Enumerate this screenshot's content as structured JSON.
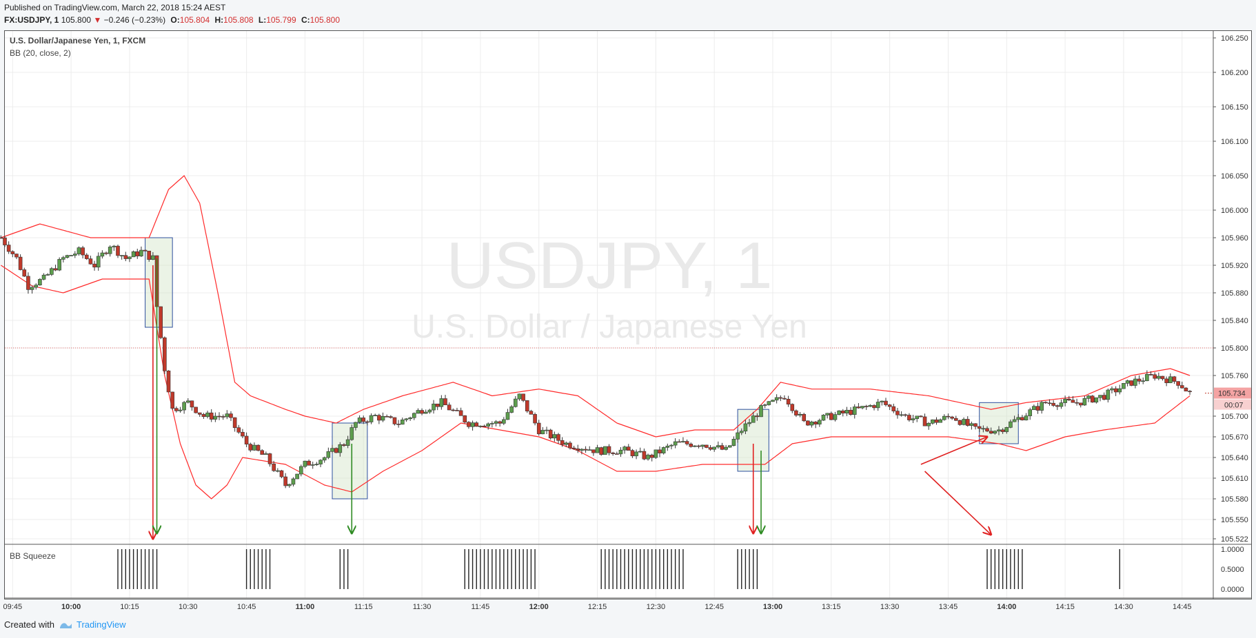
{
  "header": {
    "published": "Published on TradingView.com, March 22, 2018 15:24 AEST",
    "symbol": "FX:USDJPY, 1",
    "last": "105.800",
    "change": "−0.246 (−0.23%)",
    "open_label": "O:",
    "open": "105.804",
    "high_label": "H:",
    "high": "105.808",
    "low_label": "L:",
    "low": "105.799",
    "close_label": "C:",
    "close": "105.800"
  },
  "legend": {
    "instrument": "U.S. Dollar/Japanese Yen, 1, FXCM",
    "indicator": "BB (20, close, 2)",
    "squeeze": "BB Squeeze"
  },
  "watermark": {
    "line1": "USDJPY, 1",
    "line2": "U.S. Dollar / Japanese Yen"
  },
  "footer": {
    "created": "Created with",
    "brand": "TradingView"
  },
  "colors": {
    "up": "#5d9e4e",
    "down": "#c0392b",
    "band": "#ff2a2a",
    "box_stroke": "#2d4f9e",
    "box_fill": "rgba(210,228,200,0.45)",
    "arrow_red": "#e02020",
    "arrow_green": "#2e8b22"
  },
  "chart_data": {
    "type": "candlestick",
    "price_axis_ticks": [
      "106.250",
      "106.200",
      "106.150",
      "106.100",
      "106.050",
      "106.000",
      "105.960",
      "105.920",
      "105.880",
      "105.840",
      "105.800",
      "105.760",
      "105.700",
      "105.670",
      "105.640",
      "105.610",
      "105.580",
      "105.550",
      "105.522"
    ],
    "price_tag_current": "105.734",
    "price_tag_timer": "00:07",
    "reference_line_price": 105.8,
    "time_axis_ticks": [
      "09:45",
      "10:00",
      "10:15",
      "10:30",
      "10:45",
      "11:00",
      "11:15",
      "11:30",
      "11:45",
      "12:00",
      "12:15",
      "12:30",
      "12:45",
      "13:00",
      "13:15",
      "13:30",
      "13:45",
      "14:00",
      "14:15",
      "14:30",
      "14:45"
    ],
    "bold_time_ticks": [
      "10:00",
      "11:00",
      "12:00",
      "13:00",
      "14:00"
    ],
    "close_path": [
      {
        "t": "09:42",
        "v": 105.96
      },
      {
        "t": "09:46",
        "v": 105.93
      },
      {
        "t": "09:49",
        "v": 105.89
      },
      {
        "t": "09:53",
        "v": 105.9
      },
      {
        "t": "09:58",
        "v": 105.93
      },
      {
        "t": "10:02",
        "v": 105.94
      },
      {
        "t": "10:06",
        "v": 105.92
      },
      {
        "t": "10:10",
        "v": 105.95
      },
      {
        "t": "10:14",
        "v": 105.93
      },
      {
        "t": "10:18",
        "v": 105.94
      },
      {
        "t": "10:21",
        "v": 105.93
      },
      {
        "t": "10:22",
        "v": 105.86
      },
      {
        "t": "10:24",
        "v": 105.77
      },
      {
        "t": "10:26",
        "v": 105.71
      },
      {
        "t": "10:30",
        "v": 105.72
      },
      {
        "t": "10:34",
        "v": 105.7
      },
      {
        "t": "10:40",
        "v": 105.7
      },
      {
        "t": "10:45",
        "v": 105.66
      },
      {
        "t": "10:50",
        "v": 105.64
      },
      {
        "t": "10:55",
        "v": 105.6
      },
      {
        "t": "11:00",
        "v": 105.63
      },
      {
        "t": "11:05",
        "v": 105.64
      },
      {
        "t": "11:10",
        "v": 105.66
      },
      {
        "t": "11:13",
        "v": 105.69
      },
      {
        "t": "11:18",
        "v": 105.7
      },
      {
        "t": "11:24",
        "v": 105.69
      },
      {
        "t": "11:30",
        "v": 105.71
      },
      {
        "t": "11:35",
        "v": 105.72
      },
      {
        "t": "11:42",
        "v": 105.69
      },
      {
        "t": "11:50",
        "v": 105.69
      },
      {
        "t": "11:55",
        "v": 105.73
      },
      {
        "t": "12:00",
        "v": 105.68
      },
      {
        "t": "12:07",
        "v": 105.66
      },
      {
        "t": "12:15",
        "v": 105.65
      },
      {
        "t": "12:22",
        "v": 105.65
      },
      {
        "t": "12:28",
        "v": 105.64
      },
      {
        "t": "12:35",
        "v": 105.66
      },
      {
        "t": "12:42",
        "v": 105.66
      },
      {
        "t": "12:48",
        "v": 105.65
      },
      {
        "t": "12:52",
        "v": 105.68
      },
      {
        "t": "12:57",
        "v": 105.71
      },
      {
        "t": "13:03",
        "v": 105.73
      },
      {
        "t": "13:08",
        "v": 105.69
      },
      {
        "t": "13:15",
        "v": 105.7
      },
      {
        "t": "13:22",
        "v": 105.71
      },
      {
        "t": "13:28",
        "v": 105.72
      },
      {
        "t": "13:34",
        "v": 105.7
      },
      {
        "t": "13:40",
        "v": 105.69
      },
      {
        "t": "13:46",
        "v": 105.7
      },
      {
        "t": "13:52",
        "v": 105.68
      },
      {
        "t": "13:58",
        "v": 105.68
      },
      {
        "t": "14:04",
        "v": 105.7
      },
      {
        "t": "14:10",
        "v": 105.72
      },
      {
        "t": "14:18",
        "v": 105.72
      },
      {
        "t": "14:25",
        "v": 105.73
      },
      {
        "t": "14:32",
        "v": 105.75
      },
      {
        "t": "14:38",
        "v": 105.76
      },
      {
        "t": "14:44",
        "v": 105.75
      },
      {
        "t": "14:47",
        "v": 105.734
      }
    ],
    "bb_upper": [
      {
        "t": "09:42",
        "v": 105.96
      },
      {
        "t": "09:52",
        "v": 105.98
      },
      {
        "t": "10:05",
        "v": 105.96
      },
      {
        "t": "10:20",
        "v": 105.96
      },
      {
        "t": "10:25",
        "v": 106.03
      },
      {
        "t": "10:29",
        "v": 106.05
      },
      {
        "t": "10:33",
        "v": 106.01
      },
      {
        "t": "10:38",
        "v": 105.87
      },
      {
        "t": "10:42",
        "v": 105.75
      },
      {
        "t": "10:46",
        "v": 105.73
      },
      {
        "t": "10:55",
        "v": 105.71
      },
      {
        "t": "11:00",
        "v": 105.7
      },
      {
        "t": "11:08",
        "v": 105.69
      },
      {
        "t": "11:15",
        "v": 105.71
      },
      {
        "t": "11:25",
        "v": 105.73
      },
      {
        "t": "11:38",
        "v": 105.75
      },
      {
        "t": "11:48",
        "v": 105.73
      },
      {
        "t": "12:00",
        "v": 105.74
      },
      {
        "t": "12:10",
        "v": 105.73
      },
      {
        "t": "12:20",
        "v": 105.69
      },
      {
        "t": "12:30",
        "v": 105.67
      },
      {
        "t": "12:40",
        "v": 105.68
      },
      {
        "t": "12:50",
        "v": 105.68
      },
      {
        "t": "12:56",
        "v": 105.71
      },
      {
        "t": "13:02",
        "v": 105.75
      },
      {
        "t": "13:10",
        "v": 105.74
      },
      {
        "t": "13:25",
        "v": 105.74
      },
      {
        "t": "13:40",
        "v": 105.73
      },
      {
        "t": "13:48",
        "v": 105.72
      },
      {
        "t": "13:56",
        "v": 105.71
      },
      {
        "t": "14:05",
        "v": 105.72
      },
      {
        "t": "14:20",
        "v": 105.73
      },
      {
        "t": "14:32",
        "v": 105.76
      },
      {
        "t": "14:42",
        "v": 105.77
      },
      {
        "t": "14:47",
        "v": 105.76
      }
    ],
    "bb_lower": [
      {
        "t": "09:42",
        "v": 105.92
      },
      {
        "t": "09:50",
        "v": 105.89
      },
      {
        "t": "09:58",
        "v": 105.88
      },
      {
        "t": "10:08",
        "v": 105.9
      },
      {
        "t": "10:20",
        "v": 105.9
      },
      {
        "t": "10:24",
        "v": 105.76
      },
      {
        "t": "10:28",
        "v": 105.66
      },
      {
        "t": "10:32",
        "v": 105.6
      },
      {
        "t": "10:36",
        "v": 105.58
      },
      {
        "t": "10:40",
        "v": 105.6
      },
      {
        "t": "10:44",
        "v": 105.64
      },
      {
        "t": "10:55",
        "v": 105.63
      },
      {
        "t": "11:05",
        "v": 105.6
      },
      {
        "t": "11:12",
        "v": 105.59
      },
      {
        "t": "11:20",
        "v": 105.62
      },
      {
        "t": "11:30",
        "v": 105.65
      },
      {
        "t": "11:40",
        "v": 105.69
      },
      {
        "t": "11:50",
        "v": 105.68
      },
      {
        "t": "12:00",
        "v": 105.67
      },
      {
        "t": "12:10",
        "v": 105.65
      },
      {
        "t": "12:20",
        "v": 105.62
      },
      {
        "t": "12:30",
        "v": 105.62
      },
      {
        "t": "12:42",
        "v": 105.63
      },
      {
        "t": "12:50",
        "v": 105.63
      },
      {
        "t": "12:58",
        "v": 105.63
      },
      {
        "t": "13:05",
        "v": 105.66
      },
      {
        "t": "13:15",
        "v": 105.67
      },
      {
        "t": "13:30",
        "v": 105.67
      },
      {
        "t": "13:45",
        "v": 105.67
      },
      {
        "t": "13:58",
        "v": 105.66
      },
      {
        "t": "14:05",
        "v": 105.65
      },
      {
        "t": "14:15",
        "v": 105.67
      },
      {
        "t": "14:25",
        "v": 105.68
      },
      {
        "t": "14:38",
        "v": 105.69
      },
      {
        "t": "14:47",
        "v": 105.73
      }
    ],
    "squeeze_axis_ticks": [
      "1.0000",
      "0.5000",
      "0.0000"
    ],
    "squeeze_bars": [
      {
        "from": "10:12",
        "to": "10:22"
      },
      {
        "from": "10:45",
        "to": "10:51"
      },
      {
        "from": "11:09",
        "to": "11:11"
      },
      {
        "from": "11:41",
        "to": "11:59"
      },
      {
        "from": "12:16",
        "to": "12:37"
      },
      {
        "from": "12:51",
        "to": "12:56"
      },
      {
        "from": "13:55",
        "to": "14:04"
      },
      {
        "from": "14:29",
        "to": "14:29"
      }
    ],
    "highlight_boxes": [
      {
        "from": "10:19",
        "to": "10:26",
        "top": 105.96,
        "bottom": 105.83
      },
      {
        "from": "11:07",
        "to": "11:16",
        "top": 105.69,
        "bottom": 105.58
      },
      {
        "from": "12:51",
        "to": "12:59",
        "top": 105.71,
        "bottom": 105.62
      },
      {
        "from": "13:53",
        "to": "14:03",
        "top": 105.72,
        "bottom": 105.66
      }
    ],
    "arrows": [
      {
        "color": "red",
        "t": "10:21",
        "from": 105.92,
        "to": 105.522
      },
      {
        "color": "green",
        "t": "10:22",
        "from": 105.93,
        "to": 105.53
      },
      {
        "color": "green",
        "t": "11:12",
        "from": 105.66,
        "to": 105.53
      },
      {
        "color": "red",
        "t": "12:55",
        "from": 105.66,
        "to": 105.53
      },
      {
        "color": "green",
        "t": "12:57",
        "from": 105.65,
        "to": 105.53
      },
      {
        "color": "red",
        "t_from": "13:38",
        "t_to": "13:55",
        "from": 105.63,
        "to": 105.67
      },
      {
        "color": "red",
        "t_from": "13:39",
        "t_to": "13:56",
        "from": 105.62,
        "to": 105.528
      }
    ]
  }
}
